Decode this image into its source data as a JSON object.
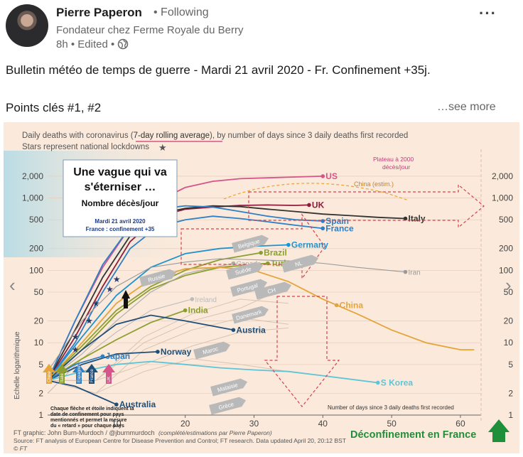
{
  "post": {
    "author_name": "Pierre Paperon",
    "follow_status": "• Following",
    "headline": "Fondateur chez Ferme Royale du Berry",
    "meta": "8h • Edited •",
    "text_line1": "Bulletin météo de temps de guerre - Mardi 21 avril 2020 - Fr. Confinement +35j.",
    "text_line2": "Points clés #1, #2",
    "see_more": "…see more",
    "more_menu": "···"
  },
  "chart_data": {
    "type": "line",
    "title_part1": "Daily deaths with coronavirus (",
    "title_underlined": "7-day rolling average",
    "title_part2": "), by number of days since 3 daily deaths first recorded",
    "subtitle": "Stars represent national lockdowns",
    "yscale": "log",
    "ylim": [
      1,
      3000
    ],
    "xlim": [
      0,
      63
    ],
    "yticks": [
      "2,000",
      "1,000",
      "500",
      "200",
      "100",
      "50",
      "20",
      "10",
      "5",
      "2",
      "1"
    ],
    "xticks": [
      "10",
      "20",
      "30",
      "40",
      "50",
      "60"
    ],
    "xlabel": "Number of days since 3 daily deaths first recorded",
    "ylabel": "Echelle logarithmique",
    "annotation_box": {
      "line1": "Une vague qui va",
      "line2": "s'éterniser …",
      "line3": "Nombre décès/jour",
      "line4": "Mardi 21 avril 2020",
      "line5": "France : confinement +35"
    },
    "us_note": {
      "line1": "Plateau à 2000",
      "line2": "décès/jour"
    },
    "china_estim": "China (estim.)",
    "arrow_labels": [
      "Russie",
      "Belgique",
      "Suède",
      "Maroc",
      "Portugal",
      "CH",
      "NL",
      "Danemark",
      "Malaisie",
      "Grèce"
    ],
    "bottom_note": {
      "line1": "Chaque flèche et étoile indiquent la",
      "line2": "date de confinement pour pays",
      "line3": "mentionnés et permet la mesure",
      "line4": "du « retard » pour chaque pays"
    },
    "small_flags": [
      "Chine",
      "Italie",
      "Espagne",
      "France",
      "UK"
    ],
    "footer1": "FT graphic: John Burn-Murdoch / @jburnmurdoch",
    "footer1b": "(complété/estimations par Pierre Paperon)",
    "footer2": "Source: FT analysis of European Centre for Disease Prevention and Control; FT research. Data updated April 20, 20:12 BST",
    "footer3": "© FT",
    "deconfinement": "Déconfinement en France",
    "series": [
      {
        "name": "US",
        "color": "#d6548a",
        "label_x": 40,
        "label_y": 2000,
        "x": [
          0,
          4,
          8,
          12,
          16,
          20,
          24,
          28,
          32,
          36,
          40
        ],
        "y": [
          3,
          20,
          110,
          400,
          900,
          1400,
          1700,
          1850,
          1900,
          1950,
          2000
        ]
      },
      {
        "name": "UK",
        "color": "#8e1c3a",
        "label_x": 38,
        "label_y": 800,
        "x": [
          0,
          4,
          8,
          12,
          16,
          20,
          24,
          28,
          32,
          36,
          38
        ],
        "y": [
          3,
          12,
          60,
          250,
          550,
          700,
          750,
          790,
          800,
          790,
          800
        ]
      },
      {
        "name": "Italy",
        "color": "#333333",
        "label_x": 52,
        "label_y": 520,
        "x": [
          0,
          4,
          8,
          12,
          16,
          20,
          24,
          28,
          32,
          36,
          40,
          44,
          48,
          52
        ],
        "y": [
          3,
          15,
          80,
          300,
          600,
          720,
          780,
          760,
          700,
          650,
          600,
          570,
          540,
          520
        ]
      },
      {
        "name": "Spain",
        "color": "#2d7fc6",
        "label_x": 40,
        "label_y": 480,
        "x": [
          0,
          4,
          8,
          12,
          16,
          20,
          24,
          28,
          32,
          36,
          40
        ],
        "y": [
          3,
          20,
          120,
          400,
          700,
          780,
          750,
          650,
          560,
          500,
          480
        ]
      },
      {
        "name": "France",
        "color": "#2d7fc6",
        "label_x": 40,
        "label_y": 380,
        "x": [
          0,
          4,
          8,
          12,
          16,
          20,
          24,
          28,
          32,
          36,
          40
        ],
        "y": [
          3,
          10,
          50,
          200,
          400,
          500,
          560,
          520,
          470,
          420,
          380
        ]
      },
      {
        "name": "Germany",
        "color": "#1f93d0",
        "label_x": 35,
        "label_y": 225,
        "x": [
          0,
          5,
          10,
          15,
          20,
          25,
          30,
          35
        ],
        "y": [
          3,
          12,
          45,
          110,
          170,
          200,
          215,
          225
        ]
      },
      {
        "name": "Brazil",
        "color": "#8c9e2f",
        "label_x": 31,
        "label_y": 175,
        "x": [
          0,
          5,
          10,
          15,
          20,
          25,
          31
        ],
        "y": [
          3,
          9,
          28,
          60,
          100,
          140,
          175
        ]
      },
      {
        "name": "Turkey",
        "color": "#8c9e2f",
        "label_x": 32,
        "label_y": 125,
        "x": [
          0,
          5,
          10,
          15,
          20,
          25,
          32
        ],
        "y": [
          3,
          8,
          25,
          55,
          85,
          110,
          125
        ]
      },
      {
        "name": "Canada",
        "color": "#aaaaaa",
        "label_x": 27,
        "label_y": 125,
        "x": [
          0,
          5,
          10,
          15,
          20,
          27
        ],
        "y": [
          3,
          7,
          20,
          50,
          90,
          125
        ]
      },
      {
        "name": "Iran",
        "color": "#999999",
        "label_x": 52,
        "label_y": 95,
        "x": [
          0,
          5,
          10,
          15,
          20,
          25,
          30,
          35,
          40,
          45,
          52
        ],
        "y": [
          4,
          20,
          60,
          110,
          130,
          145,
          140,
          135,
          125,
          110,
          95
        ]
      },
      {
        "name": "China",
        "color": "#e5a43a",
        "label_x": 42,
        "label_y": 33,
        "x": [
          0,
          5,
          10,
          15,
          20,
          25,
          30,
          35,
          40,
          45,
          50,
          55,
          60,
          62
        ],
        "y": [
          3,
          10,
          35,
          75,
          105,
          110,
          100,
          70,
          40,
          25,
          15,
          10,
          8,
          8
        ]
      },
      {
        "name": "Ireland",
        "color": "#bbbbbb",
        "label_x": 21,
        "label_y": 40,
        "x": [
          0,
          5,
          10,
          15,
          21
        ],
        "y": [
          2,
          6,
          14,
          28,
          40
        ]
      },
      {
        "name": "India",
        "color": "#8c9e2f",
        "label_x": 20,
        "label_y": 28,
        "x": [
          0,
          5,
          10,
          15,
          20
        ],
        "y": [
          3,
          6,
          11,
          19,
          28
        ]
      },
      {
        "name": "Austria",
        "color": "#1f4e79",
        "label_x": 27,
        "label_y": 15,
        "x": [
          0,
          5,
          10,
          15,
          20,
          27
        ],
        "y": [
          3,
          8,
          18,
          24,
          20,
          15
        ]
      },
      {
        "name": "Norway",
        "color": "#1f4e79",
        "label_x": 16,
        "label_y": 7.5,
        "x": [
          0,
          5,
          10,
          16
        ],
        "y": [
          3,
          5,
          7,
          7.5
        ]
      },
      {
        "name": "Japan",
        "color": "#2d7fc6",
        "label_x": 8,
        "label_y": 6.5,
        "x": [
          0,
          4,
          8
        ],
        "y": [
          3,
          5,
          6.5
        ]
      },
      {
        "name": "S Korea",
        "color": "#5ec4d6",
        "label_x": 48,
        "label_y": 2.8,
        "x": [
          0,
          5,
          10,
          15,
          20,
          25,
          30,
          35,
          40,
          48
        ],
        "y": [
          3,
          4,
          5,
          5.5,
          5,
          4.5,
          4.2,
          4,
          3.5,
          2.8
        ]
      },
      {
        "name": "Australia",
        "color": "#1f4e79",
        "label_x": 10,
        "label_y": 1.4,
        "x": [
          0,
          4,
          8,
          10
        ],
        "y": [
          3,
          2.5,
          1.7,
          1.4
        ]
      }
    ]
  }
}
